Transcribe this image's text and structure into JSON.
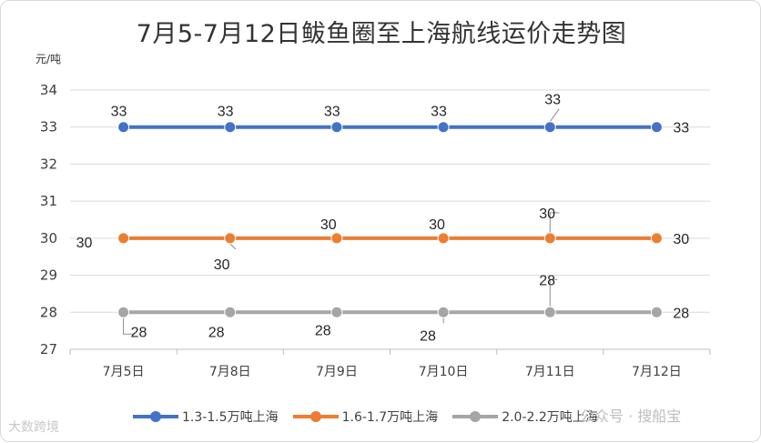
{
  "chart_data": {
    "type": "line",
    "title": "7月5-7月12日鲅鱼圈至上海航线运价走势图",
    "ylabel": "元/吨",
    "ylim": [
      27,
      34
    ],
    "yticks": [
      27,
      28,
      29,
      30,
      31,
      32,
      33,
      34
    ],
    "categories": [
      "7月5日",
      "7月8日",
      "7月9日",
      "7月10日",
      "7月11日",
      "7月12日"
    ],
    "series": [
      {
        "name": "1.3-1.5万吨上海",
        "color": "#4472c4",
        "values": [
          33,
          33,
          33,
          33,
          33,
          33
        ]
      },
      {
        "name": "1.6-1.7万吨上海",
        "color": "#ed7d31",
        "values": [
          30,
          30,
          30,
          30,
          30,
          30
        ]
      },
      {
        "name": "2.0-2.2万吨上海",
        "color": "#a5a5a5",
        "values": [
          28,
          28,
          28,
          28,
          28,
          28
        ]
      }
    ],
    "grid": true,
    "legend": "bottom"
  },
  "watermarks": {
    "left": "大数跨境",
    "right": "公众号 · 搜船宝"
  }
}
